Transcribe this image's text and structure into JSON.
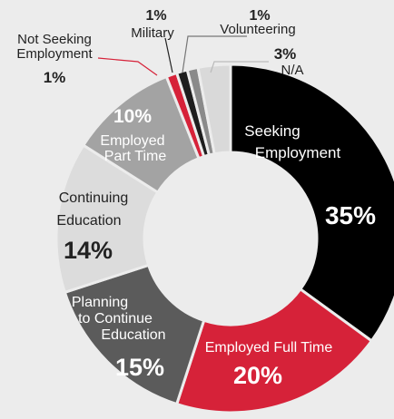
{
  "chart_data": {
    "type": "pie",
    "title": "",
    "donut": true,
    "series": [
      {
        "name": "Seeking Employment",
        "value": 35,
        "color": "#000000"
      },
      {
        "name": "Employed Full Time",
        "value": 20,
        "color": "#d62239"
      },
      {
        "name": "Planning to Continue Education",
        "value": 15,
        "color": "#5b5b5b"
      },
      {
        "name": "Continuing Education",
        "value": 14,
        "color": "#dcdcdc"
      },
      {
        "name": "Employed Part Time",
        "value": 10,
        "color": "#a3a3a3"
      },
      {
        "name": "Not Seeking Employment",
        "value": 1,
        "color": "#d62239"
      },
      {
        "name": "Military",
        "value": 1,
        "color": "#1e1e1e"
      },
      {
        "name": "Volunteering",
        "value": 1,
        "color": "#8a8a8a"
      },
      {
        "name": "N/A",
        "value": 3,
        "color": "#d9d9d9"
      }
    ],
    "labels": {
      "seeking": {
        "lines": [
          "Seeking",
          "Employment"
        ],
        "pct": "35%"
      },
      "fulltime": {
        "lines": [
          "Employed Full Time"
        ],
        "pct": "20%"
      },
      "planning": {
        "lines": [
          "Planning",
          "to Continue",
          "Education"
        ],
        "pct": "15%"
      },
      "continuing": {
        "lines": [
          "Continuing",
          "Education"
        ],
        "pct": "14%"
      },
      "parttime": {
        "lines": [
          "Employed",
          "Part Time"
        ],
        "pct": "10%"
      },
      "notseeking": {
        "lines": [
          "Not Seeking",
          "Employment"
        ],
        "pct": "1%"
      },
      "military": {
        "lines": [
          "Military"
        ],
        "pct": "1%"
      },
      "volunteering": {
        "lines": [
          "Volunteering"
        ],
        "pct": "1%"
      },
      "na": {
        "lines": [
          "N/A"
        ],
        "pct": "3%"
      }
    }
  }
}
